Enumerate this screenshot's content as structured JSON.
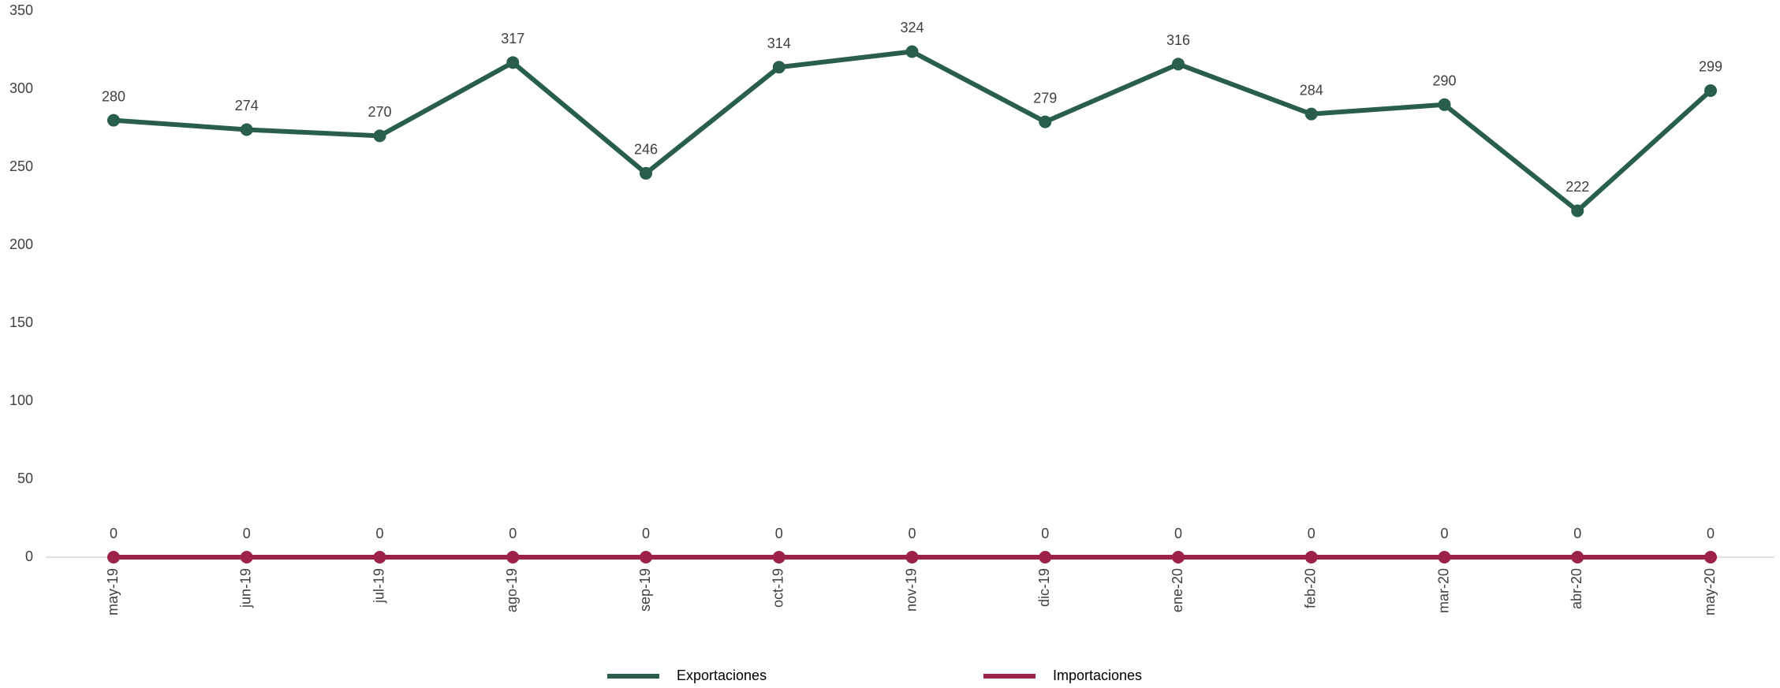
{
  "chart_data": {
    "type": "line",
    "categories": [
      "may-19",
      "jun-19",
      "jul-19",
      "ago-19",
      "sep-19",
      "oct-19",
      "nov-19",
      "dic-19",
      "ene-20",
      "feb-20",
      "mar-20",
      "abr-20",
      "may-20"
    ],
    "series": [
      {
        "name": "Exportaciones",
        "color": "#285e4a",
        "values": [
          280,
          274,
          270,
          317,
          246,
          314,
          324,
          279,
          316,
          284,
          290,
          222,
          299
        ]
      },
      {
        "name": "Importaciones",
        "color": "#9c2247",
        "values": [
          0,
          0,
          0,
          0,
          0,
          0,
          0,
          0,
          0,
          0,
          0,
          0,
          0
        ]
      }
    ],
    "ylim": [
      0,
      350
    ],
    "yticks": [
      0,
      50,
      100,
      150,
      200,
      250,
      300,
      350
    ],
    "grid": false,
    "legend": "bottom"
  }
}
